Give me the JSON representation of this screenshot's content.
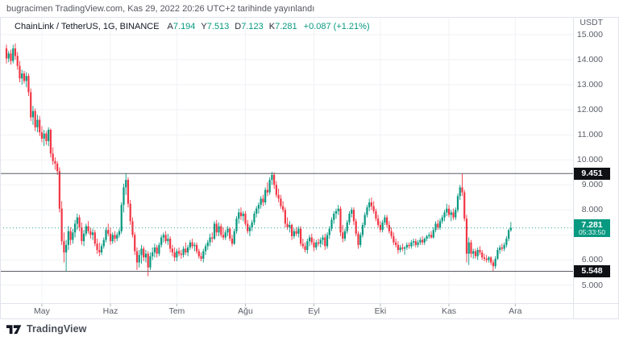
{
  "attribution": "bugracimen TradingView.com, Kas 29, 2022 20:26 UTC+2 tarihinde yayınlandı",
  "header": {
    "symbol": "ChainLink / TetherUS, 1G, BINANCE",
    "ohlc": [
      {
        "label": "A",
        "value": "7.194"
      },
      {
        "label": "Y",
        "value": "7.513"
      },
      {
        "label": "D",
        "value": "7.123"
      },
      {
        "label": "K",
        "value": "7.281"
      }
    ],
    "change": "+0.087 (+1.21%)"
  },
  "price_axis": {
    "unit": "USDT",
    "ticks": [
      {
        "label": "15.000",
        "price": 15
      },
      {
        "label": "14.000",
        "price": 14
      },
      {
        "label": "13.000",
        "price": 13
      },
      {
        "label": "12.000",
        "price": 12
      },
      {
        "label": "11.000",
        "price": 11
      },
      {
        "label": "10.000",
        "price": 10
      },
      {
        "label": "9.000",
        "price": 9
      },
      {
        "label": "8.000",
        "price": 8
      },
      {
        "label": "6.000",
        "price": 6
      },
      {
        "label": "5.000",
        "price": 5
      }
    ],
    "levels": [
      {
        "label": "9.451",
        "price": 9.451,
        "style": "level"
      },
      {
        "label": "5.548",
        "price": 5.548,
        "style": "level"
      },
      {
        "label": "7.281",
        "price": 7.281,
        "countdown": "05:33:50",
        "style": "current"
      }
    ]
  },
  "time_axis": {
    "labels": [
      {
        "label": "May",
        "index": 16
      },
      {
        "label": "Haz",
        "index": 47
      },
      {
        "label": "Tem",
        "index": 77
      },
      {
        "label": "Ağu",
        "index": 108
      },
      {
        "label": "Eyl",
        "index": 139
      },
      {
        "label": "Eki",
        "index": 169
      },
      {
        "label": "Kas",
        "index": 200
      },
      {
        "label": "Ara",
        "index": 230
      }
    ]
  },
  "footer": {
    "logo_text": "TradingView"
  },
  "colors": {
    "up": "#089981",
    "down": "#f23645",
    "grid": "#f0f2f6",
    "frame": "#e0e3eb",
    "axis_text": "#5a5e68",
    "text": "#131722",
    "accent": "#089981",
    "level_line": "#5b5e66",
    "level_label_bg": "#0f1014",
    "tick_mark": "#b0b3bc"
  },
  "chart_data": {
    "type": "candlestick",
    "title": "ChainLink / TetherUS",
    "exchange": "BINANCE",
    "interval": "1G",
    "quote": "USDT",
    "start_date": "2022-04-15",
    "end_date": "2022-11-29",
    "ylim": [
      5,
      15
    ],
    "grid": true,
    "horizontal_levels": [
      9.451,
      5.548
    ],
    "last_price": 7.281,
    "candles": [
      [
        14.45,
        14.6,
        13.85,
        14.05
      ],
      [
        14.05,
        14.35,
        13.9,
        14.25
      ],
      [
        14.25,
        14.4,
        13.8,
        13.95
      ],
      [
        13.95,
        14.6,
        13.85,
        14.45
      ],
      [
        14.45,
        14.65,
        14.0,
        14.15
      ],
      [
        14.15,
        14.3,
        13.6,
        13.75
      ],
      [
        13.75,
        13.95,
        13.1,
        13.25
      ],
      [
        13.25,
        13.6,
        13.0,
        13.45
      ],
      [
        13.45,
        13.55,
        13.05,
        13.15
      ],
      [
        13.15,
        13.5,
        12.9,
        13.35
      ],
      [
        13.35,
        13.45,
        12.55,
        12.7
      ],
      [
        12.7,
        12.85,
        11.55,
        11.7
      ],
      [
        11.7,
        12.15,
        11.4,
        11.95
      ],
      [
        11.95,
        12.05,
        11.15,
        11.3
      ],
      [
        11.3,
        11.8,
        11.1,
        11.6
      ],
      [
        11.6,
        11.75,
        10.95,
        11.1
      ],
      [
        11.1,
        11.35,
        10.7,
        10.85
      ],
      [
        10.85,
        11.2,
        10.55,
        11.05
      ],
      [
        11.05,
        11.15,
        10.6,
        10.75
      ],
      [
        10.75,
        11.3,
        10.55,
        11.2
      ],
      [
        11.2,
        11.25,
        10.1,
        10.25
      ],
      [
        10.25,
        10.5,
        9.8,
        9.95
      ],
      [
        9.95,
        10.1,
        9.6,
        9.85
      ],
      [
        9.85,
        9.95,
        9.4,
        9.55
      ],
      [
        9.55,
        9.7,
        7.9,
        8.05
      ],
      [
        8.05,
        8.35,
        6.6,
        6.75
      ],
      [
        6.75,
        7.1,
        5.9,
        6.3
      ],
      [
        6.3,
        6.8,
        5.55,
        6.6
      ],
      [
        6.6,
        7.35,
        6.4,
        7.15
      ],
      [
        7.15,
        7.3,
        6.6,
        6.8
      ],
      [
        6.8,
        7.25,
        6.65,
        7.1
      ],
      [
        7.1,
        7.6,
        6.9,
        7.45
      ],
      [
        7.45,
        7.85,
        7.2,
        7.7
      ],
      [
        7.7,
        7.8,
        7.15,
        7.3
      ],
      [
        7.3,
        7.5,
        6.6,
        6.75
      ],
      [
        6.75,
        7.2,
        6.55,
        7.05
      ],
      [
        7.05,
        7.45,
        6.95,
        7.35
      ],
      [
        7.35,
        7.55,
        7.05,
        7.15
      ],
      [
        7.15,
        7.3,
        6.85,
        7.0
      ],
      [
        7.0,
        7.25,
        6.8,
        7.1
      ],
      [
        7.1,
        7.2,
        6.55,
        6.65
      ],
      [
        6.65,
        6.85,
        6.25,
        6.4
      ],
      [
        6.4,
        6.7,
        6.15,
        6.3
      ],
      [
        6.3,
        6.65,
        6.2,
        6.55
      ],
      [
        6.55,
        6.9,
        6.45,
        6.8
      ],
      [
        6.8,
        7.3,
        6.7,
        7.2
      ],
      [
        7.2,
        7.45,
        6.95,
        7.05
      ],
      [
        7.05,
        7.3,
        6.6,
        6.75
      ],
      [
        6.75,
        7.1,
        6.65,
        7.0
      ],
      [
        7.0,
        7.15,
        6.7,
        6.85
      ],
      [
        6.85,
        7.1,
        6.75,
        7.0
      ],
      [
        7.0,
        7.25,
        6.9,
        7.15
      ],
      [
        7.15,
        8.3,
        7.05,
        8.2
      ],
      [
        8.2,
        9.05,
        7.9,
        8.9
      ],
      [
        8.9,
        9.47,
        8.6,
        9.2
      ],
      [
        9.2,
        9.3,
        8.1,
        8.25
      ],
      [
        8.25,
        8.4,
        7.4,
        7.55
      ],
      [
        7.55,
        7.7,
        6.9,
        7.0
      ],
      [
        7.0,
        7.1,
        6.2,
        6.35
      ],
      [
        6.35,
        6.5,
        5.6,
        5.9
      ],
      [
        5.9,
        6.4,
        5.7,
        6.2
      ],
      [
        6.2,
        6.6,
        5.85,
        6.45
      ],
      [
        6.45,
        6.55,
        5.95,
        6.1
      ],
      [
        6.1,
        6.4,
        5.9,
        6.25
      ],
      [
        6.25,
        6.35,
        5.35,
        5.7
      ],
      [
        5.7,
        6.3,
        5.6,
        6.15
      ],
      [
        6.15,
        6.5,
        6.0,
        6.3
      ],
      [
        6.3,
        6.65,
        6.1,
        6.5
      ],
      [
        6.5,
        6.6,
        6.1,
        6.25
      ],
      [
        6.25,
        6.7,
        6.15,
        6.6
      ],
      [
        6.6,
        7.0,
        6.5,
        6.9
      ],
      [
        6.9,
        7.1,
        6.7,
        7.0
      ],
      [
        7.0,
        7.15,
        6.65,
        6.75
      ],
      [
        6.75,
        7.05,
        6.6,
        6.85
      ],
      [
        6.85,
        6.95,
        6.3,
        6.45
      ],
      [
        6.45,
        6.6,
        6.15,
        6.3
      ],
      [
        6.3,
        6.5,
        5.95,
        6.1
      ],
      [
        6.1,
        6.45,
        5.95,
        6.35
      ],
      [
        6.35,
        6.5,
        6.15,
        6.25
      ],
      [
        6.25,
        6.4,
        6.05,
        6.2
      ],
      [
        6.2,
        6.55,
        6.1,
        6.45
      ],
      [
        6.45,
        6.7,
        6.2,
        6.3
      ],
      [
        6.3,
        6.6,
        6.15,
        6.5
      ],
      [
        6.5,
        6.8,
        6.4,
        6.7
      ],
      [
        6.7,
        6.85,
        6.45,
        6.55
      ],
      [
        6.55,
        6.7,
        6.35,
        6.6
      ],
      [
        6.6,
        6.7,
        6.25,
        6.35
      ],
      [
        6.35,
        6.45,
        6.05,
        6.15
      ],
      [
        6.15,
        6.3,
        5.95,
        6.05
      ],
      [
        6.05,
        6.45,
        5.9,
        6.35
      ],
      [
        6.35,
        6.65,
        6.2,
        6.55
      ],
      [
        6.55,
        6.8,
        6.4,
        6.7
      ],
      [
        6.7,
        7.05,
        6.55,
        6.9
      ],
      [
        6.9,
        7.1,
        6.7,
        6.85
      ],
      [
        6.85,
        7.55,
        6.8,
        7.45
      ],
      [
        7.45,
        7.6,
        6.95,
        7.1
      ],
      [
        7.1,
        7.5,
        6.95,
        7.35
      ],
      [
        7.35,
        7.45,
        6.9,
        7.0
      ],
      [
        7.0,
        7.3,
        6.8,
        6.9
      ],
      [
        6.9,
        7.2,
        6.8,
        7.1
      ],
      [
        7.1,
        7.35,
        6.95,
        7.25
      ],
      [
        7.25,
        7.3,
        6.75,
        6.85
      ],
      [
        6.85,
        7.0,
        6.55,
        6.65
      ],
      [
        6.65,
        7.25,
        6.6,
        7.15
      ],
      [
        7.15,
        7.75,
        7.05,
        7.65
      ],
      [
        7.65,
        8.05,
        7.45,
        7.9
      ],
      [
        7.9,
        8.1,
        7.6,
        7.75
      ],
      [
        7.75,
        7.95,
        7.55,
        7.85
      ],
      [
        7.85,
        7.95,
        7.35,
        7.45
      ],
      [
        7.45,
        7.6,
        7.05,
        7.15
      ],
      [
        7.15,
        7.4,
        6.95,
        7.3
      ],
      [
        7.3,
        7.6,
        7.15,
        7.5
      ],
      [
        7.5,
        7.95,
        7.4,
        7.85
      ],
      [
        7.85,
        8.15,
        7.7,
        8.05
      ],
      [
        8.05,
        8.3,
        7.85,
        8.2
      ],
      [
        8.2,
        8.55,
        8.05,
        8.45
      ],
      [
        8.45,
        8.6,
        8.15,
        8.3
      ],
      [
        8.3,
        8.9,
        8.2,
        8.8
      ],
      [
        8.8,
        9.1,
        8.55,
        8.7
      ],
      [
        8.7,
        9.3,
        8.6,
        9.2
      ],
      [
        9.2,
        9.52,
        9.0,
        9.4
      ],
      [
        9.4,
        9.5,
        8.85,
        9.0
      ],
      [
        9.0,
        9.15,
        8.5,
        8.6
      ],
      [
        8.6,
        8.85,
        8.3,
        8.45
      ],
      [
        8.45,
        8.6,
        8.05,
        8.15
      ],
      [
        8.15,
        8.35,
        7.9,
        8.0
      ],
      [
        8.0,
        8.1,
        7.3,
        7.45
      ],
      [
        7.45,
        7.7,
        7.2,
        7.3
      ],
      [
        7.3,
        7.55,
        7.1,
        7.4
      ],
      [
        7.4,
        7.45,
        6.8,
        6.95
      ],
      [
        6.95,
        7.25,
        6.85,
        7.15
      ],
      [
        7.15,
        7.3,
        6.95,
        7.05
      ],
      [
        7.05,
        7.35,
        6.9,
        7.25
      ],
      [
        7.25,
        7.35,
        6.55,
        6.65
      ],
      [
        6.65,
        6.85,
        6.45,
        6.55
      ],
      [
        6.55,
        6.7,
        6.3,
        6.4
      ],
      [
        6.4,
        6.85,
        6.25,
        6.75
      ],
      [
        6.75,
        7.0,
        6.55,
        6.9
      ],
      [
        6.9,
        7.05,
        6.6,
        6.7
      ],
      [
        6.7,
        6.85,
        6.35,
        6.5
      ],
      [
        6.5,
        6.8,
        6.4,
        6.7
      ],
      [
        6.7,
        6.85,
        6.55,
        6.65
      ],
      [
        6.65,
        6.9,
        6.5,
        6.8
      ],
      [
        6.8,
        7.0,
        6.6,
        6.9
      ],
      [
        6.9,
        7.05,
        6.4,
        6.55
      ],
      [
        6.55,
        7.1,
        6.45,
        7.0
      ],
      [
        7.0,
        7.35,
        6.85,
        7.25
      ],
      [
        7.25,
        7.7,
        7.15,
        7.6
      ],
      [
        7.6,
        7.95,
        7.45,
        7.85
      ],
      [
        7.85,
        8.05,
        7.65,
        7.95
      ],
      [
        7.95,
        8.2,
        7.8,
        8.05
      ],
      [
        8.05,
        8.15,
        6.95,
        7.1
      ],
      [
        7.1,
        7.4,
        6.7,
        6.85
      ],
      [
        6.85,
        7.25,
        6.75,
        7.15
      ],
      [
        7.15,
        7.6,
        7.05,
        7.5
      ],
      [
        7.5,
        7.95,
        7.4,
        7.85
      ],
      [
        7.85,
        8.1,
        7.7,
        8.0
      ],
      [
        8.0,
        8.1,
        7.4,
        7.55
      ],
      [
        7.55,
        7.65,
        6.95,
        7.05
      ],
      [
        7.05,
        7.15,
        6.45,
        6.6
      ],
      [
        6.6,
        7.1,
        6.5,
        7.0
      ],
      [
        7.0,
        7.5,
        6.9,
        7.4
      ],
      [
        7.4,
        7.9,
        7.3,
        7.8
      ],
      [
        7.8,
        8.2,
        7.7,
        8.1
      ],
      [
        8.1,
        8.45,
        7.95,
        8.3
      ],
      [
        8.3,
        8.5,
        8.0,
        8.15
      ],
      [
        8.15,
        8.35,
        7.85,
        7.95
      ],
      [
        7.95,
        8.05,
        7.55,
        7.65
      ],
      [
        7.65,
        7.8,
        7.3,
        7.4
      ],
      [
        7.4,
        7.55,
        7.1,
        7.2
      ],
      [
        7.2,
        7.6,
        7.1,
        7.5
      ],
      [
        7.5,
        7.8,
        7.4,
        7.7
      ],
      [
        7.7,
        7.8,
        7.3,
        7.4
      ],
      [
        7.4,
        7.55,
        7.05,
        7.15
      ],
      [
        7.15,
        7.3,
        6.85,
        6.95
      ],
      [
        6.95,
        7.1,
        6.6,
        6.7
      ],
      [
        6.7,
        6.85,
        6.5,
        6.6
      ],
      [
        6.6,
        6.75,
        6.25,
        6.4
      ],
      [
        6.4,
        6.6,
        6.3,
        6.5
      ],
      [
        6.5,
        6.65,
        6.35,
        6.45
      ],
      [
        6.45,
        6.55,
        6.2,
        6.5
      ],
      [
        6.5,
        6.7,
        6.4,
        6.6
      ],
      [
        6.6,
        6.7,
        6.45,
        6.55
      ],
      [
        6.55,
        6.8,
        6.45,
        6.7
      ],
      [
        6.7,
        6.85,
        6.55,
        6.75
      ],
      [
        6.75,
        6.85,
        6.5,
        6.6
      ],
      [
        6.6,
        6.8,
        6.5,
        6.7
      ],
      [
        6.7,
        6.9,
        6.6,
        6.8
      ],
      [
        6.8,
        6.95,
        6.6,
        6.7
      ],
      [
        6.7,
        6.9,
        6.6,
        6.85
      ],
      [
        6.85,
        7.0,
        6.75,
        6.95
      ],
      [
        6.95,
        7.1,
        6.85,
        7.0
      ],
      [
        7.0,
        7.15,
        6.85,
        6.9
      ],
      [
        6.9,
        7.3,
        6.85,
        7.2
      ],
      [
        7.2,
        7.55,
        7.1,
        7.45
      ],
      [
        7.45,
        7.6,
        7.2,
        7.3
      ],
      [
        7.3,
        7.65,
        7.2,
        7.55
      ],
      [
        7.55,
        7.8,
        7.45,
        7.7
      ],
      [
        7.7,
        8.0,
        7.55,
        7.9
      ],
      [
        7.9,
        8.25,
        7.75,
        8.05
      ],
      [
        8.05,
        8.2,
        7.7,
        7.8
      ],
      [
        7.8,
        8.0,
        7.55,
        7.9
      ],
      [
        7.9,
        8.05,
        7.6,
        7.7
      ],
      [
        7.7,
        8.1,
        7.6,
        8.0
      ],
      [
        8.0,
        8.65,
        7.9,
        8.55
      ],
      [
        8.55,
        9.0,
        8.4,
        8.9
      ],
      [
        8.9,
        9.45,
        8.55,
        8.7
      ],
      [
        8.7,
        8.8,
        7.55,
        7.65
      ],
      [
        7.65,
        7.8,
        5.9,
        6.25
      ],
      [
        6.25,
        6.9,
        5.8,
        6.7
      ],
      [
        6.7,
        6.8,
        6.1,
        6.25
      ],
      [
        6.25,
        6.45,
        6.05,
        6.35
      ],
      [
        6.35,
        6.45,
        6.05,
        6.15
      ],
      [
        6.15,
        6.5,
        6.0,
        6.4
      ],
      [
        6.4,
        6.55,
        6.2,
        6.3
      ],
      [
        6.3,
        6.4,
        6.0,
        6.1
      ],
      [
        6.1,
        6.25,
        5.95,
        6.05
      ],
      [
        6.05,
        6.2,
        5.9,
        6.0
      ],
      [
        6.0,
        6.15,
        5.9,
        6.1
      ],
      [
        6.1,
        6.15,
        5.8,
        5.9
      ],
      [
        5.9,
        6.0,
        5.55,
        5.75
      ],
      [
        5.75,
        6.15,
        5.65,
        6.05
      ],
      [
        6.05,
        6.5,
        6.0,
        6.4
      ],
      [
        6.4,
        6.6,
        6.25,
        6.5
      ],
      [
        6.5,
        6.65,
        6.35,
        6.45
      ],
      [
        6.45,
        6.7,
        6.35,
        6.6
      ],
      [
        6.6,
        6.95,
        6.5,
        6.85
      ],
      [
        6.85,
        7.25,
        6.75,
        7.19
      ],
      [
        7.194,
        7.513,
        7.123,
        7.281
      ]
    ]
  }
}
